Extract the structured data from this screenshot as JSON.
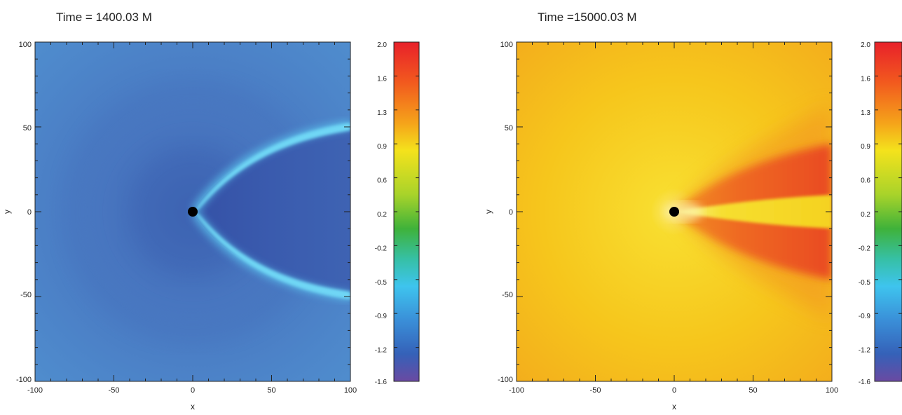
{
  "chart_data": [
    {
      "type": "heatmap",
      "title": "Time = 1400.03 M",
      "xlabel": "x",
      "ylabel": "y",
      "xlim": [
        -100,
        100
      ],
      "ylim": [
        -100,
        100
      ],
      "xticks": [
        "-100",
        "-50",
        "0",
        "50",
        "100"
      ],
      "yticks": [
        "-100",
        "-50",
        "0",
        "50",
        "100"
      ],
      "colorbar": {
        "range": [
          -1.6,
          2.0
        ],
        "tick_labels": [
          "2.0",
          "1.6",
          "1.3",
          "0.9",
          "0.6",
          "0.2",
          "-0.2",
          "-0.5",
          "-0.9",
          "-1.2",
          "-1.6"
        ]
      },
      "field": {
        "background_level": -0.7,
        "cone_interior_level": -1.05,
        "shock_front_level": -0.45,
        "black_hole_center": [
          0,
          0
        ]
      }
    },
    {
      "type": "heatmap",
      "title": "Time =15000.03 M",
      "xlabel": "x",
      "ylabel": "y",
      "xlim": [
        -100,
        100
      ],
      "ylim": [
        -100,
        100
      ],
      "xticks": [
        "-100",
        "-50",
        "0",
        "50",
        "100"
      ],
      "yticks": [
        "-100",
        "-50",
        "0",
        "50",
        "100"
      ],
      "colorbar": {
        "range": [
          -1.6,
          2.0
        ],
        "tick_labels": [
          "2.0",
          "1.6",
          "1.3",
          "0.9",
          "0.6",
          "0.2",
          "-0.2",
          "-0.5",
          "-0.9",
          "-1.2",
          "-1.6"
        ]
      },
      "field": {
        "background_level": 1.4,
        "wake_level": 1.8,
        "jet_core_level": 1.25,
        "black_hole_center": [
          0,
          0
        ]
      }
    }
  ]
}
